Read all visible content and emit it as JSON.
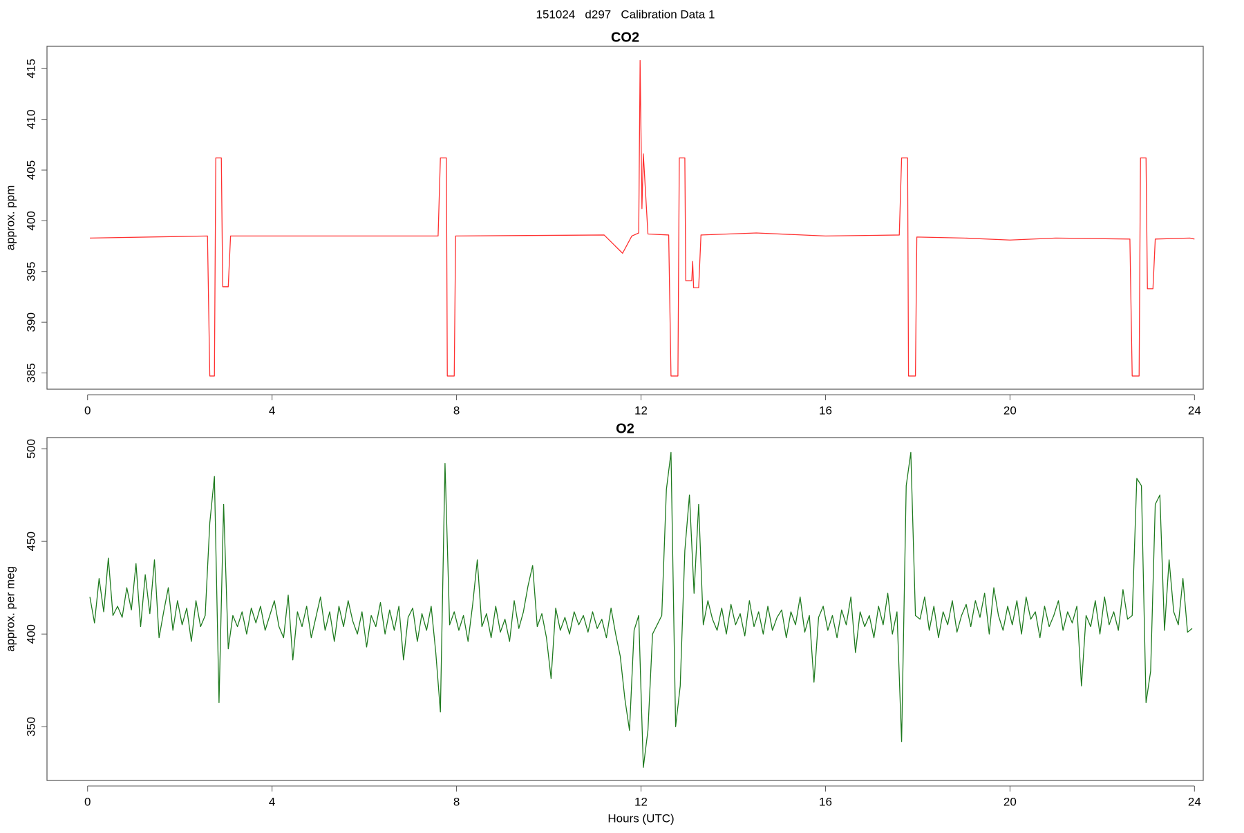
{
  "title": "151024   d297   Calibration Data 1",
  "chart_data": [
    {
      "type": "line",
      "title": "CO2",
      "ylabel": "approx. ppm",
      "color": "#ff3030",
      "xlim": [
        -0.88,
        24.19
      ],
      "ylim": [
        383.4,
        417.2
      ],
      "xticks": [
        0,
        4,
        8,
        12,
        16,
        20,
        24
      ],
      "yticks": [
        385,
        390,
        395,
        400,
        405,
        410,
        415
      ],
      "x": [
        0.05,
        2.6,
        2.65,
        2.75,
        2.78,
        2.9,
        2.93,
        3.05,
        3.1,
        7.6,
        7.65,
        7.78,
        7.8,
        7.95,
        7.98,
        11.2,
        11.6,
        11.8,
        11.95,
        11.98,
        12.02,
        12.05,
        12.15,
        12.6,
        12.65,
        12.8,
        12.83,
        12.95,
        12.97,
        13.1,
        13.12,
        13.14,
        13.25,
        13.3,
        14.5,
        16,
        17.6,
        17.65,
        17.78,
        17.8,
        17.95,
        17.98,
        19,
        20,
        21,
        22.6,
        22.65,
        22.8,
        22.83,
        22.95,
        22.98,
        23.1,
        23.15,
        23.9,
        24
      ],
      "values": [
        398.3,
        398.5,
        384.7,
        384.7,
        406.2,
        406.2,
        393.5,
        393.5,
        398.5,
        398.5,
        406.2,
        406.2,
        384.7,
        384.7,
        398.5,
        398.6,
        396.8,
        398.5,
        398.8,
        415.8,
        401.2,
        406.6,
        398.7,
        398.6,
        384.7,
        384.7,
        406.2,
        406.2,
        394.1,
        394.1,
        396,
        393.4,
        393.4,
        398.6,
        398.8,
        398.5,
        398.6,
        406.2,
        406.2,
        384.7,
        384.7,
        398.4,
        398.3,
        398.1,
        398.3,
        398.2,
        384.7,
        384.7,
        406.2,
        406.2,
        393.3,
        393.3,
        398.2,
        398.3,
        398.2
      ]
    },
    {
      "type": "line",
      "title": "O2",
      "ylabel": "approx. per meg",
      "xlabel": "Hours (UTC)",
      "color": "#1e7a1e",
      "xlim": [
        -0.88,
        24.19
      ],
      "ylim": [
        321,
        506
      ],
      "xticks": [
        0,
        4,
        8,
        12,
        16,
        20,
        24
      ],
      "yticks": [
        350,
        400,
        450,
        500
      ],
      "x": [
        0.05,
        0.15,
        0.25,
        0.35,
        0.45,
        0.55,
        0.65,
        0.75,
        0.85,
        0.95,
        1.05,
        1.15,
        1.25,
        1.35,
        1.45,
        1.55,
        1.65,
        1.75,
        1.85,
        1.95,
        2.05,
        2.15,
        2.25,
        2.35,
        2.45,
        2.55,
        2.65,
        2.75,
        2.85,
        2.95,
        3.05,
        3.15,
        3.25,
        3.35,
        3.45,
        3.55,
        3.65,
        3.75,
        3.85,
        3.95,
        4.05,
        4.15,
        4.25,
        4.35,
        4.45,
        4.55,
        4.65,
        4.75,
        4.85,
        4.95,
        5.05,
        5.15,
        5.25,
        5.35,
        5.45,
        5.55,
        5.65,
        5.75,
        5.85,
        5.95,
        6.05,
        6.15,
        6.25,
        6.35,
        6.45,
        6.55,
        6.65,
        6.75,
        6.85,
        6.95,
        7.05,
        7.15,
        7.25,
        7.35,
        7.45,
        7.55,
        7.65,
        7.75,
        7.85,
        7.95,
        8.05,
        8.15,
        8.25,
        8.35,
        8.45,
        8.55,
        8.65,
        8.75,
        8.85,
        8.95,
        9.05,
        9.15,
        9.25,
        9.35,
        9.45,
        9.55,
        9.65,
        9.75,
        9.85,
        9.95,
        10.05,
        10.15,
        10.25,
        10.35,
        10.45,
        10.55,
        10.65,
        10.75,
        10.85,
        10.95,
        11.05,
        11.15,
        11.25,
        11.35,
        11.45,
        11.55,
        11.65,
        11.75,
        11.85,
        11.95,
        12.05,
        12.15,
        12.25,
        12.35,
        12.45,
        12.55,
        12.65,
        12.75,
        12.85,
        12.95,
        13.05,
        13.15,
        13.25,
        13.35,
        13.45,
        13.55,
        13.65,
        13.75,
        13.85,
        13.95,
        14.05,
        14.15,
        14.25,
        14.35,
        14.45,
        14.55,
        14.65,
        14.75,
        14.85,
        14.95,
        15.05,
        15.15,
        15.25,
        15.35,
        15.45,
        15.55,
        15.65,
        15.75,
        15.85,
        15.95,
        16.05,
        16.15,
        16.25,
        16.35,
        16.45,
        16.55,
        16.65,
        16.75,
        16.85,
        16.95,
        17.05,
        17.15,
        17.25,
        17.35,
        17.45,
        17.55,
        17.65,
        17.75,
        17.85,
        17.95,
        18.05,
        18.15,
        18.25,
        18.35,
        18.45,
        18.55,
        18.65,
        18.75,
        18.85,
        18.95,
        19.05,
        19.15,
        19.25,
        19.35,
        19.45,
        19.55,
        19.65,
        19.75,
        19.85,
        19.95,
        20.05,
        20.15,
        20.25,
        20.35,
        20.45,
        20.55,
        20.65,
        20.75,
        20.85,
        20.95,
        21.05,
        21.15,
        21.25,
        21.35,
        21.45,
        21.55,
        21.65,
        21.75,
        21.85,
        21.95,
        22.05,
        22.15,
        22.25,
        22.35,
        22.45,
        22.55,
        22.65,
        22.75,
        22.85,
        22.95,
        23.05,
        23.15,
        23.25,
        23.35,
        23.45,
        23.55,
        23.65,
        23.75,
        23.85,
        23.95
      ],
      "values": [
        420,
        406,
        430,
        412,
        441,
        410,
        415,
        409,
        425,
        413,
        438,
        404,
        432,
        411,
        440,
        398,
        412,
        425,
        402,
        418,
        405,
        414,
        396,
        418,
        404,
        410,
        460,
        485,
        363,
        470,
        392,
        410,
        404,
        412,
        400,
        414,
        406,
        415,
        402,
        410,
        418,
        404,
        398,
        421,
        386,
        412,
        404,
        415,
        398,
        409,
        420,
        402,
        412,
        396,
        415,
        404,
        418,
        407,
        400,
        412,
        393,
        410,
        404,
        417,
        400,
        413,
        402,
        415,
        386,
        409,
        414,
        396,
        411,
        402,
        415,
        390,
        358,
        492,
        405,
        412,
        402,
        410,
        396,
        416,
        440,
        404,
        411,
        398,
        415,
        401,
        408,
        396,
        418,
        403,
        412,
        426,
        437,
        404,
        411,
        398,
        376,
        414,
        402,
        409,
        400,
        412,
        405,
        410,
        401,
        412,
        403,
        408,
        398,
        414,
        400,
        388,
        365,
        348,
        402,
        410,
        328,
        348,
        400,
        405,
        410,
        478,
        498,
        350,
        372,
        445,
        475,
        422,
        470,
        405,
        418,
        408,
        402,
        414,
        400,
        416,
        405,
        411,
        399,
        418,
        404,
        412,
        400,
        415,
        402,
        409,
        413,
        398,
        412,
        405,
        420,
        401,
        410,
        374,
        409,
        415,
        402,
        410,
        398,
        413,
        405,
        420,
        390,
        412,
        404,
        410,
        398,
        415,
        405,
        422,
        400,
        412,
        342,
        480,
        498,
        410,
        408,
        420,
        402,
        415,
        398,
        412,
        405,
        418,
        401,
        410,
        416,
        404,
        418,
        409,
        422,
        400,
        425,
        410,
        402,
        415,
        405,
        418,
        400,
        420,
        408,
        412,
        398,
        415,
        404,
        410,
        418,
        402,
        412,
        406,
        415,
        372,
        410,
        404,
        418,
        400,
        420,
        405,
        412,
        402,
        424,
        408,
        410,
        484,
        480,
        363,
        380,
        470,
        475,
        402,
        440,
        412,
        405,
        430,
        401,
        403
      ]
    }
  ]
}
